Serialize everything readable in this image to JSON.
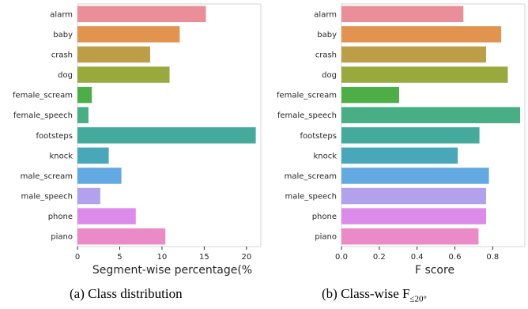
{
  "chart_data": [
    {
      "type": "bar",
      "orientation": "horizontal",
      "categories": [
        "alarm",
        "baby",
        "crash",
        "dog",
        "female_scream",
        "female_speech",
        "footsteps",
        "knock",
        "male_scream",
        "male_speech",
        "phone",
        "piano"
      ],
      "values": [
        15.2,
        12.1,
        8.6,
        10.9,
        1.7,
        1.3,
        21.1,
        3.7,
        5.2,
        2.7,
        6.9,
        10.4
      ],
      "xlim": [
        0,
        21.7
      ],
      "xticks": [
        0,
        5,
        10,
        15,
        20
      ],
      "xlabel": "Segment-wise percentage(%",
      "caption": "(a) Class distribution"
    },
    {
      "type": "bar",
      "orientation": "horizontal",
      "categories": [
        "alarm",
        "baby",
        "crash",
        "dog",
        "female_scream",
        "female_speech",
        "footsteps",
        "knock",
        "male_scream",
        "male_speech",
        "phone",
        "piano"
      ],
      "values": [
        0.645,
        0.845,
        0.765,
        0.88,
        0.305,
        0.945,
        0.73,
        0.615,
        0.78,
        0.765,
        0.765,
        0.725
      ],
      "xlim": [
        0,
        0.97
      ],
      "xticks": [
        "0.0",
        "0.2",
        "0.4",
        "0.6",
        "0.8"
      ],
      "xlabel": "F score",
      "caption_prefix": "(b) Class-wise F",
      "caption_sub": "≤20°"
    }
  ],
  "colors": [
    "#ea8f9a",
    "#e39350",
    "#bc9e46",
    "#9aa93e",
    "#4dae47",
    "#47ae86",
    "#44aa9c",
    "#48a7b8",
    "#62a8e1",
    "#b2a2ee",
    "#dd8bea",
    "#ea8ac6"
  ]
}
